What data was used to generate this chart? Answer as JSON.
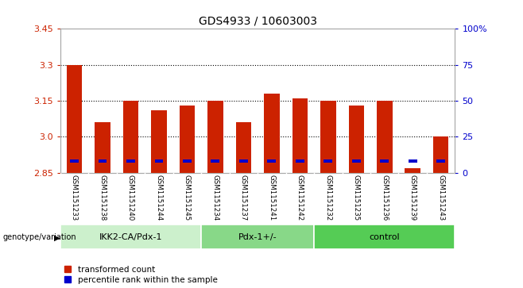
{
  "title": "GDS4933 / 10603003",
  "samples": [
    "GSM1151233",
    "GSM1151238",
    "GSM1151240",
    "GSM1151244",
    "GSM1151245",
    "GSM1151234",
    "GSM1151237",
    "GSM1151241",
    "GSM1151242",
    "GSM1151232",
    "GSM1151235",
    "GSM1151236",
    "GSM1151239",
    "GSM1151243"
  ],
  "red_values": [
    3.3,
    3.06,
    3.15,
    3.11,
    3.13,
    3.15,
    3.06,
    3.18,
    3.16,
    3.15,
    3.13,
    3.15,
    2.87,
    3.0
  ],
  "blue_percentiles": [
    7,
    7,
    7,
    7,
    7,
    7,
    7,
    7,
    7,
    7,
    7,
    7,
    7,
    7
  ],
  "ymin": 2.85,
  "ymax": 3.45,
  "yticks": [
    2.85,
    3.0,
    3.15,
    3.3,
    3.45
  ],
  "right_yticks": [
    0,
    25,
    50,
    75,
    100
  ],
  "right_ytick_labels": [
    "0",
    "25",
    "50",
    "75",
    "100%"
  ],
  "groups": [
    {
      "label": "IKK2-CA/Pdx-1",
      "start": 0,
      "end": 5,
      "color": "#ccf0cc"
    },
    {
      "label": "Pdx-1+/-",
      "start": 5,
      "end": 9,
      "color": "#88d888"
    },
    {
      "label": "control",
      "start": 9,
      "end": 14,
      "color": "#55cc55"
    }
  ],
  "group_label": "genotype/variation",
  "legend_red": "transformed count",
  "legend_blue": "percentile rank within the sample",
  "bar_width": 0.55,
  "bar_color_red": "#cc2200",
  "bar_color_blue": "#0000cc",
  "plot_bg": "#ffffff",
  "label_bg": "#d0d0d0",
  "grid_color": "#000000",
  "left_label_color": "#cc2200",
  "right_label_color": "#0000cc"
}
